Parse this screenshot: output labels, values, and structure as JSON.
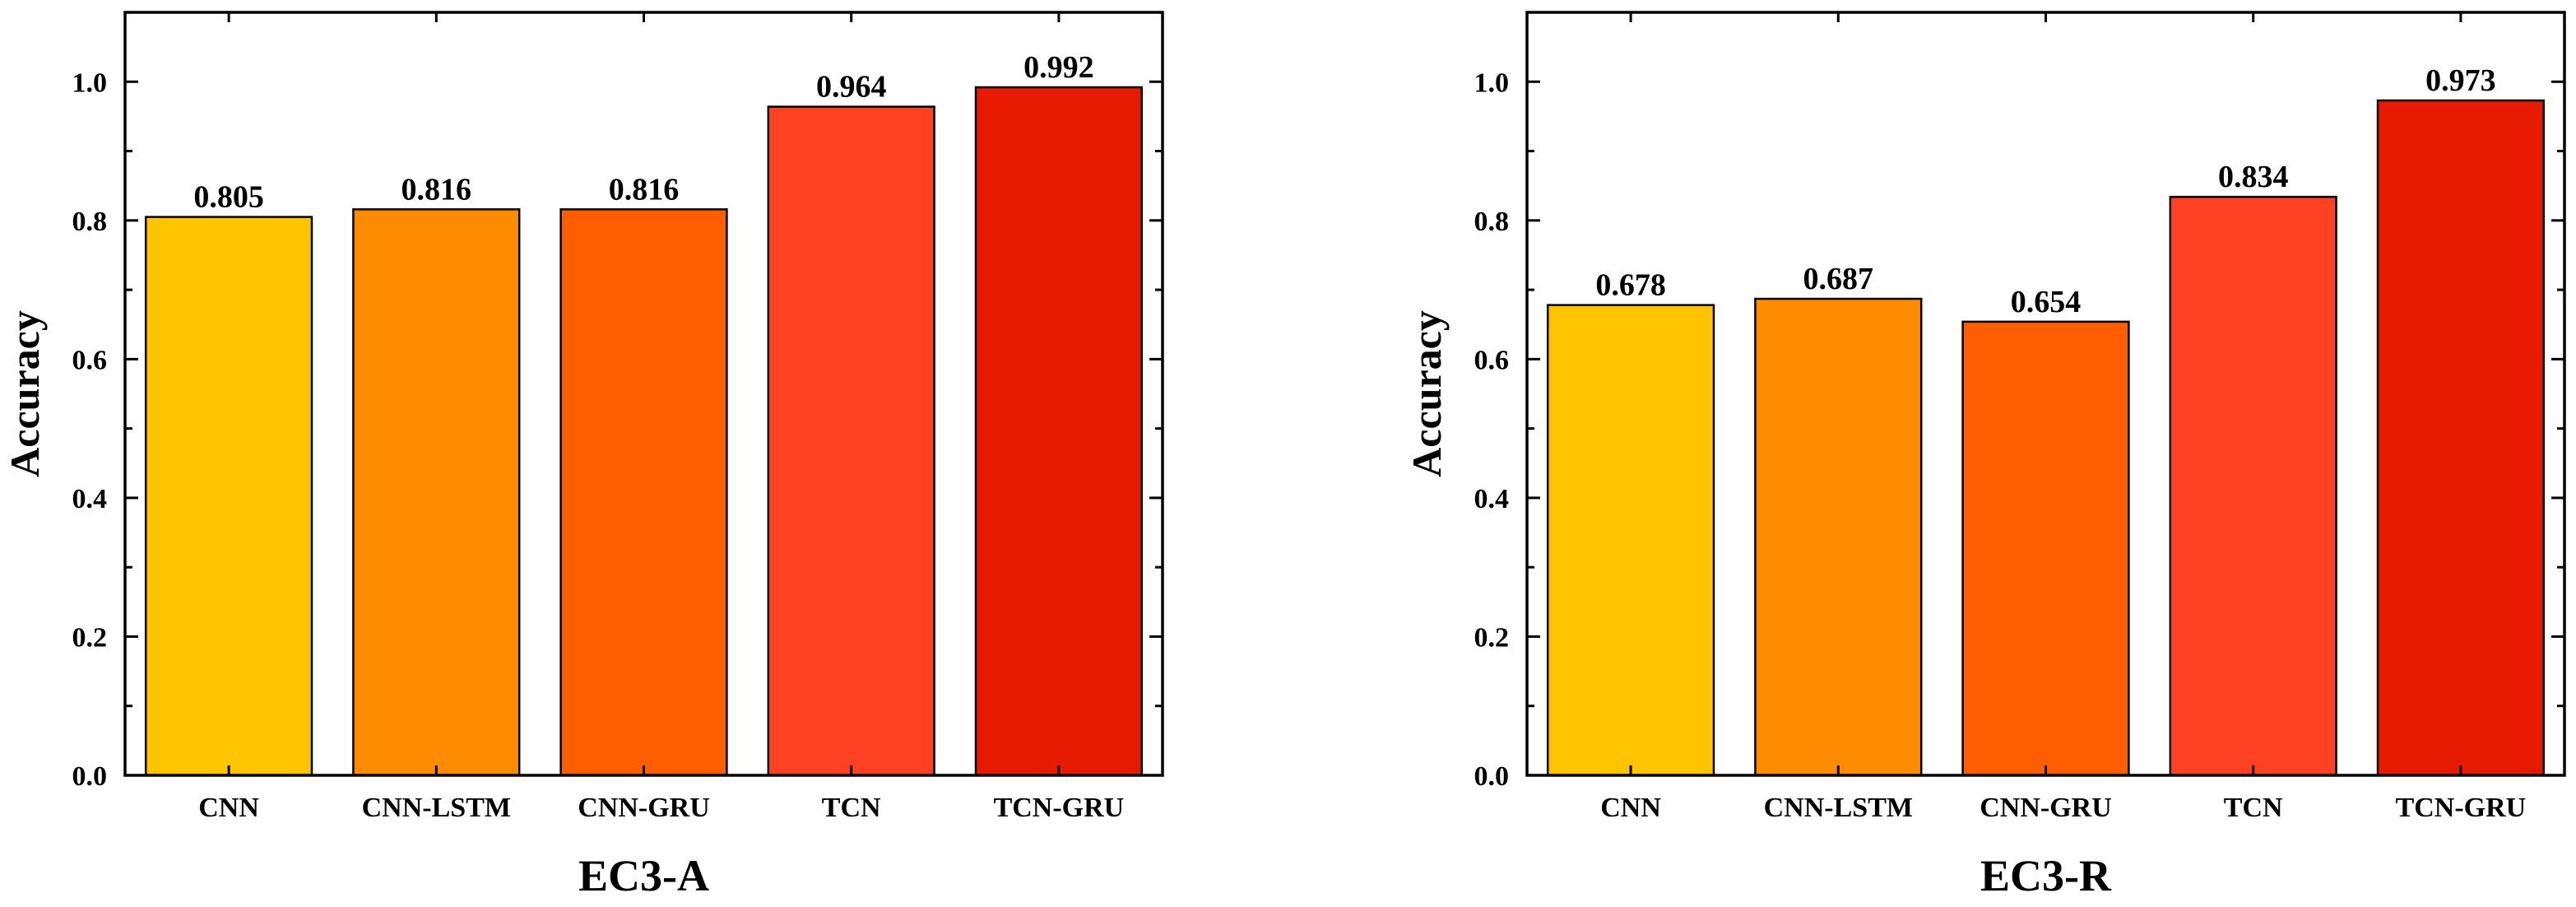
{
  "chart_data": [
    {
      "type": "bar",
      "categories": [
        "CNN",
        "CNN-LSTM",
        "CNN-GRU",
        "TCN",
        "TCN-GRU"
      ],
      "values": [
        0.805,
        0.816,
        0.816,
        0.964,
        0.992
      ],
      "value_labels": [
        "0.805",
        "0.816",
        "0.816",
        "0.964",
        "0.992"
      ],
      "xlabel": "EC3-A",
      "ylabel": "Accuracy",
      "ylim": [
        0,
        1.1
      ],
      "yticks": [
        "0.0",
        "0.2",
        "0.4",
        "0.6",
        "0.8",
        "1.0"
      ],
      "colors": [
        "#FFC400",
        "#FF8C00",
        "#FF5E00",
        "#FF4123",
        "#E61A00"
      ],
      "grid": false,
      "legend": "none"
    },
    {
      "type": "bar",
      "categories": [
        "CNN",
        "CNN-LSTM",
        "CNN-GRU",
        "TCN",
        "TCN-GRU"
      ],
      "values": [
        0.678,
        0.687,
        0.654,
        0.834,
        0.973
      ],
      "value_labels": [
        "0.678",
        "0.687",
        "0.654",
        "0.834",
        "0.973"
      ],
      "xlabel": "EC3-R",
      "ylabel": "Accuracy",
      "ylim": [
        0,
        1.1
      ],
      "yticks": [
        "0.0",
        "0.2",
        "0.4",
        "0.6",
        "0.8",
        "1.0"
      ],
      "colors": [
        "#FFC400",
        "#FF8C00",
        "#FF5E00",
        "#FF4123",
        "#E61A00"
      ],
      "grid": false,
      "legend": "none"
    }
  ]
}
